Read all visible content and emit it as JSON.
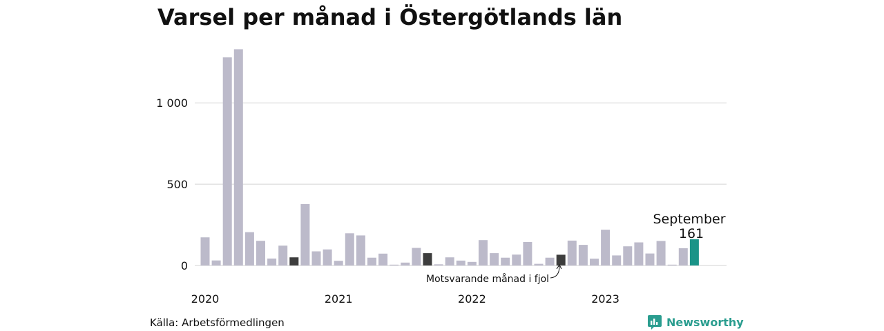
{
  "title": "Varsel per månad i Östergötlands län",
  "source": "Källa: Arbetsförmedlingen",
  "brand": "Newsworthy",
  "colors": {
    "bar": "#bcbaca",
    "comparison": "#3d3d3d",
    "current": "#1a9488",
    "grid": "#dcdcdc",
    "brand": "#2a9d8f"
  },
  "chart_data": {
    "type": "bar",
    "title": "Varsel per månad i Östergötlands län",
    "xlabel": "",
    "ylabel": "",
    "ylim": [
      0,
      1330
    ],
    "yticks": [
      0,
      500,
      1000
    ],
    "ytick_labels": [
      "0",
      "500",
      "1 000"
    ],
    "year_labels": [
      "2020",
      "2021",
      "2022",
      "2023"
    ],
    "grid": true,
    "legend": "none",
    "categories": [
      "2020-01",
      "2020-02",
      "2020-03",
      "2020-04",
      "2020-05",
      "2020-06",
      "2020-07",
      "2020-08",
      "2020-09",
      "2020-10",
      "2020-11",
      "2020-12",
      "2021-01",
      "2021-02",
      "2021-03",
      "2021-04",
      "2021-05",
      "2021-06",
      "2021-07",
      "2021-08",
      "2021-09",
      "2021-10",
      "2021-11",
      "2021-12",
      "2022-01",
      "2022-02",
      "2022-03",
      "2022-04",
      "2022-05",
      "2022-06",
      "2022-07",
      "2022-08",
      "2022-09",
      "2022-10",
      "2022-11",
      "2022-12",
      "2023-01",
      "2023-02",
      "2023-03",
      "2023-04",
      "2023-05",
      "2023-06",
      "2023-07",
      "2023-08",
      "2023-09"
    ],
    "values": [
      173,
      31,
      1280,
      1330,
      205,
      152,
      43,
      122,
      50,
      378,
      87,
      99,
      29,
      198,
      185,
      48,
      73,
      5,
      18,
      108,
      76,
      7,
      50,
      30,
      22,
      156,
      76,
      48,
      67,
      144,
      10,
      48,
      66,
      153,
      127,
      42,
      220,
      62,
      118,
      142,
      74,
      151,
      5,
      106,
      161
    ],
    "highlights": {
      "comparison_indices": [
        8,
        20,
        32
      ],
      "current_index": 44
    },
    "annotations": {
      "comparison_label": "Motsvarande månad i fjol",
      "current_month": "September",
      "current_value": "161"
    }
  }
}
